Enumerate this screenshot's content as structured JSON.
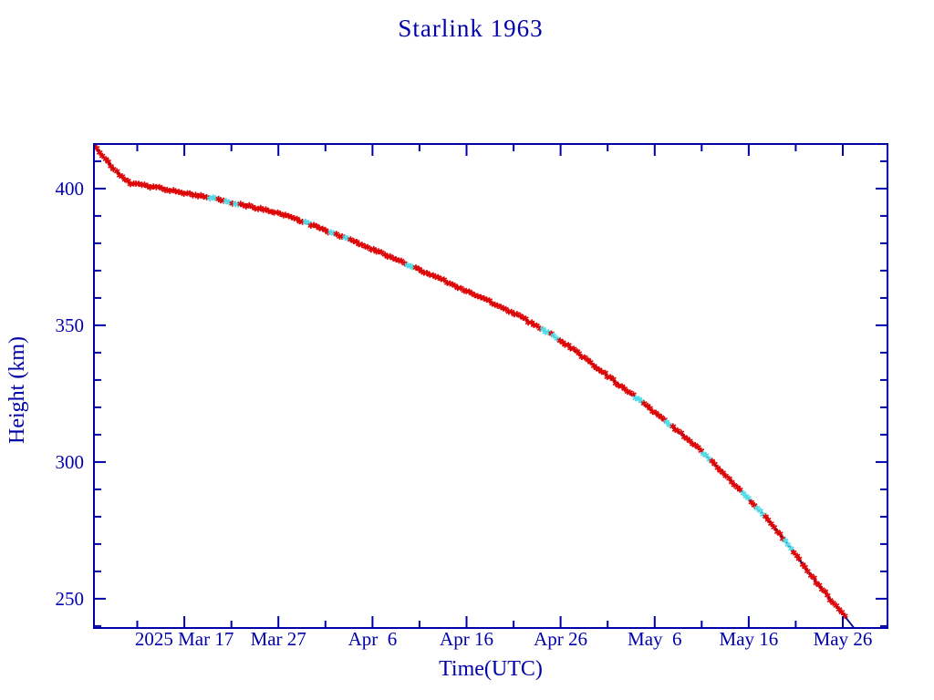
{
  "title": "Starlink 1963",
  "chart_data": {
    "type": "line",
    "title": "Starlink 1963",
    "xlabel": "Time(UTC)",
    "ylabel": "Height (km)",
    "legend": "none",
    "grid": false,
    "x_axis": {
      "epoch": "days since 2025 Mar 7 00:00 UTC",
      "range_days": [
        0.39,
        84.75
      ],
      "major_ticks": [
        {
          "day": 10,
          "label": "2025 Mar 17"
        },
        {
          "day": 20,
          "label": "Mar 27"
        },
        {
          "day": 30,
          "label": "Apr  6"
        },
        {
          "day": 40,
          "label": "Apr 16"
        },
        {
          "day": 50,
          "label": "Apr 26"
        },
        {
          "day": 60,
          "label": "May  6"
        },
        {
          "day": 70,
          "label": "May 16"
        },
        {
          "day": 80,
          "label": "May 26"
        }
      ],
      "minor_tick_days": [
        5,
        15,
        25,
        35,
        45,
        55,
        65,
        75
      ]
    },
    "y_axis": {
      "range_km": [
        239.3,
        416.3
      ],
      "major_ticks": [
        250,
        300,
        350,
        400
      ],
      "minor_ticks": [
        240,
        260,
        270,
        280,
        290,
        310,
        320,
        330,
        340,
        360,
        370,
        380,
        390,
        410
      ]
    },
    "series": [
      {
        "name": "orbital-height",
        "marker": "asterisk",
        "marker_step_days": 0.3,
        "marker_color_primary": "#dd0707",
        "marker_color_secondary": "#55dbe6",
        "line_color": "#000085",
        "points_day_km": [
          [
            0.4,
            416.3
          ],
          [
            0.8,
            414.0
          ],
          [
            1.5,
            411.0
          ],
          [
            2.5,
            407.2
          ],
          [
            3.5,
            403.8
          ],
          [
            4.3,
            402.0
          ],
          [
            5.0,
            401.6
          ],
          [
            6.0,
            401.0
          ],
          [
            8.0,
            399.8
          ],
          [
            10.0,
            398.5
          ],
          [
            12.5,
            396.8
          ],
          [
            15.0,
            395.0
          ],
          [
            17.5,
            393.1
          ],
          [
            20.0,
            391.0
          ],
          [
            22.5,
            388.0
          ],
          [
            25.0,
            384.8
          ],
          [
            27.5,
            381.4
          ],
          [
            30.0,
            377.8
          ],
          [
            32.5,
            374.1
          ],
          [
            35.0,
            370.3
          ],
          [
            37.5,
            366.5
          ],
          [
            40.0,
            362.5
          ],
          [
            42.5,
            358.6
          ],
          [
            45.0,
            354.5
          ],
          [
            47.5,
            349.7
          ],
          [
            50.0,
            344.5
          ],
          [
            52.5,
            338.2
          ],
          [
            55.0,
            331.5
          ],
          [
            57.5,
            324.9
          ],
          [
            60.0,
            318.0
          ],
          [
            62.5,
            311.2
          ],
          [
            65.0,
            304.0
          ],
          [
            67.5,
            295.5
          ],
          [
            70.0,
            286.5
          ],
          [
            72.5,
            277.0
          ],
          [
            75.0,
            266.0
          ],
          [
            77.0,
            257.0
          ],
          [
            78.5,
            250.5
          ],
          [
            80.0,
            244.5
          ],
          [
            81.2,
            239.3
          ]
        ]
      }
    ],
    "colors": {
      "axis_and_text": "#0000aa",
      "background": "#ffffff"
    }
  }
}
